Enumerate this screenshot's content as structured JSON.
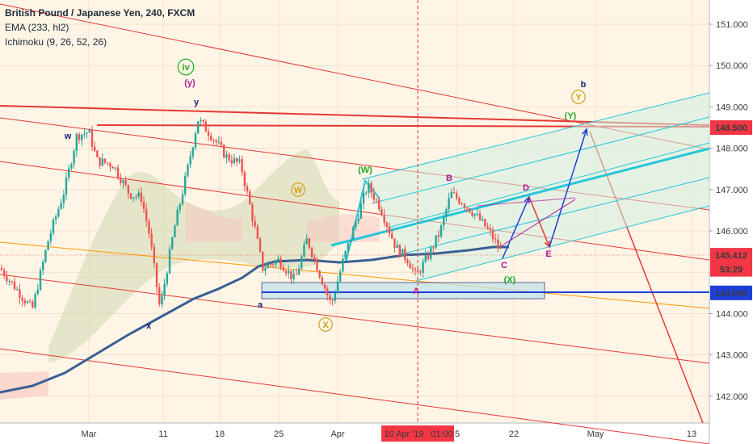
{
  "header": {
    "symbol": "British Pound / Japanese Yen, 240, FXCM",
    "indicator_1": "EMA (233, hl2)",
    "indicator_2": "Ichimoku (9, 26, 52, 26)"
  },
  "chart_data": {
    "type": "line",
    "title": "British Pound / Japanese Yen, 240, FXCM",
    "instrument": "GBPJPY",
    "timeframe": "240",
    "ylim": [
      141.4,
      151.5
    ],
    "x_ticks": [
      "Mar",
      "11",
      "18",
      "25",
      "Apr",
      "10 Apr '19",
      "01:00",
      "5",
      "22",
      "May",
      "13"
    ],
    "y_ticks": [
      "151.000",
      "150.000",
      "149.000",
      "148.000",
      "147.000",
      "146.000",
      "145.000",
      "144.000",
      "143.000",
      "142.000"
    ],
    "price_labels": [
      {
        "text": "148.500",
        "value": 148.5,
        "color": "#f23645"
      },
      {
        "text": "145.412",
        "value": 145.412,
        "color": "#f23645"
      },
      {
        "text": "53:29",
        "value": 145.07,
        "color": "#f23645"
      },
      {
        "text": "144.500",
        "value": 144.5,
        "color": "#1e3fd8"
      }
    ],
    "series": [
      {
        "name": "EMA (233, hl2)",
        "color": "#3a5f94"
      }
    ],
    "wave_labels": [
      {
        "text": "iv",
        "color": "#22aa22",
        "circled": true
      },
      {
        "text": "(y)",
        "color": "#b0179a",
        "circled": false
      },
      {
        "text": "y",
        "color": "#1a237e",
        "circled": false
      },
      {
        "text": "w",
        "color": "#1a237e",
        "circled": false
      },
      {
        "text": "x",
        "color": "#1a237e",
        "circled": false
      },
      {
        "text": "a",
        "color": "#1a237e",
        "circled": false
      },
      {
        "text": "W",
        "color": "#d4a017",
        "circled": true
      },
      {
        "text": "X",
        "color": "#d4a017",
        "circled": true
      },
      {
        "text": "(W)",
        "color": "#22aa22",
        "circled": false
      },
      {
        "text": "(X)",
        "color": "#22aa22",
        "circled": false
      },
      {
        "text": "(Y)",
        "color": "#22aa22",
        "circled": false
      },
      {
        "text": "Y",
        "color": "#d4a017",
        "circled": true
      },
      {
        "text": "b",
        "color": "#1a237e",
        "circled": false
      },
      {
        "text": "A",
        "color": "#b0179a",
        "circled": false
      },
      {
        "text": "B",
        "color": "#b0179a",
        "circled": false
      },
      {
        "text": "C",
        "color": "#b0179a",
        "circled": false
      },
      {
        "text": "D",
        "color": "#b0179a",
        "circled": false
      },
      {
        "text": "E",
        "color": "#b0179a",
        "circled": false
      }
    ],
    "horizontal_levels": [
      {
        "value": 148.5,
        "color": "#f23645"
      },
      {
        "value": 144.5,
        "color": "#1e3fd8"
      }
    ],
    "grid": true,
    "legend": "top-left"
  },
  "colors": {
    "background": "#fff5e6",
    "bull_candle": "#26a69a",
    "bear_candle": "#ef5350",
    "ema": "#3a5f94",
    "channel_red": "#e53935",
    "channel_cyan": "#26c6da",
    "projection": "#1e3fd8",
    "axis_bg": "#ffffff"
  }
}
